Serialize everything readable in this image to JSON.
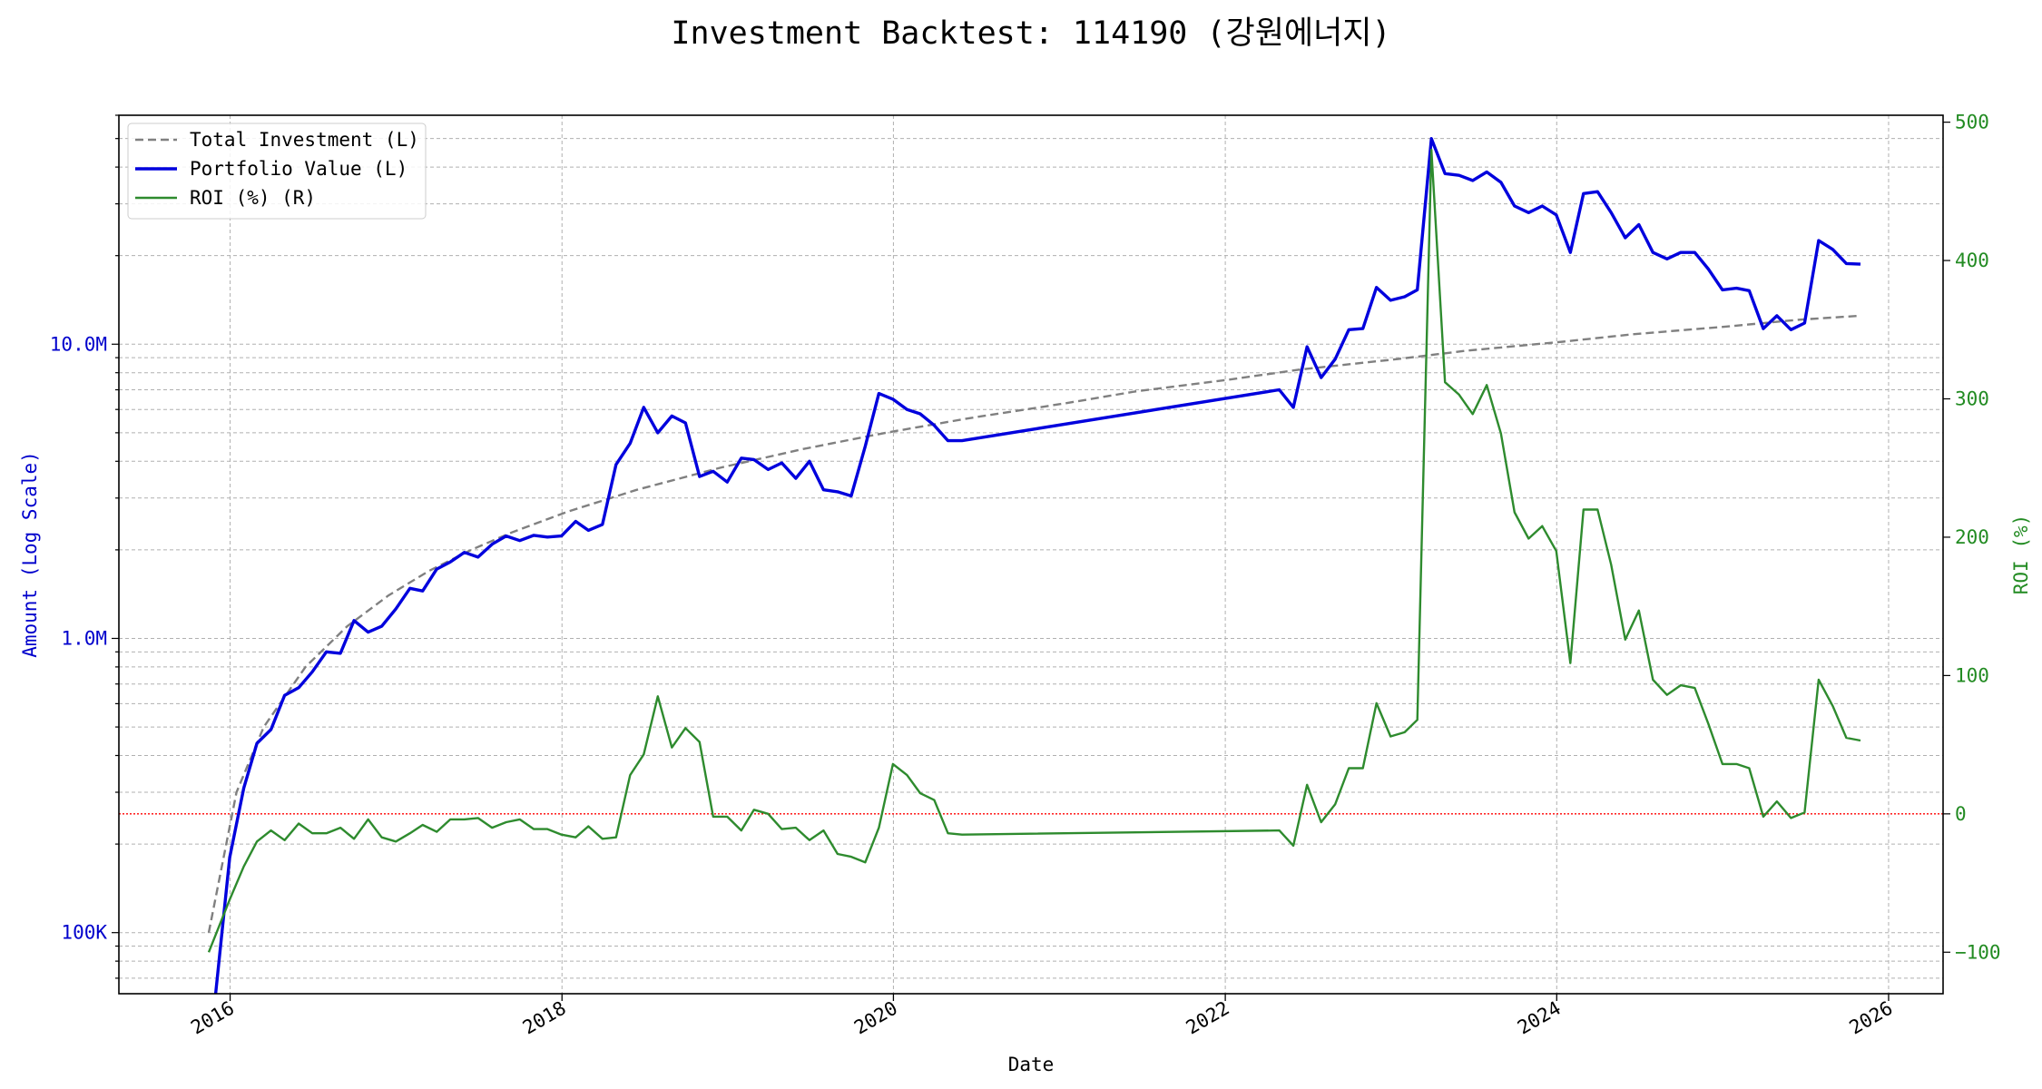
{
  "chart_data": {
    "type": "line",
    "title": "Investment Backtest: 114190 (강원에너지)",
    "xlabel": "Date",
    "ylabel_left": "Amount (Log Scale)",
    "ylabel_right": "ROI (%)",
    "y_left_scale": "log",
    "y_left_ticks": [
      {
        "value": 100000,
        "label": "100K"
      },
      {
        "value": 1000000,
        "label": "1.0M"
      },
      {
        "value": 10000000,
        "label": "10.0M"
      }
    ],
    "y_left_range": [
      62000,
      60000000
    ],
    "y_right_ticks": [
      {
        "value": -100,
        "label": "−100"
      },
      {
        "value": 0,
        "label": "0"
      },
      {
        "value": 100,
        "label": "100"
      },
      {
        "value": 200,
        "label": "200"
      },
      {
        "value": 300,
        "label": "300"
      },
      {
        "value": 400,
        "label": "400"
      },
      {
        "value": 500,
        "label": "500"
      }
    ],
    "y_right_range": [
      -130,
      505
    ],
    "x_ticks": [
      {
        "value": "2016-01-01",
        "label": "2016"
      },
      {
        "value": "2018-01-01",
        "label": "2018"
      },
      {
        "value": "2020-01-01",
        "label": "2020"
      },
      {
        "value": "2022-01-01",
        "label": "2022"
      },
      {
        "value": "2024-01-01",
        "label": "2024"
      },
      {
        "value": "2026-01-01",
        "label": "2026"
      }
    ],
    "x_range": [
      "2015-05-01",
      "2026-05-01"
    ],
    "grid": true,
    "legend_position": "top-left",
    "reference_line": {
      "axis": "right",
      "value": 0,
      "color": "#ff0000",
      "style": "dotted"
    },
    "series": [
      {
        "name": "Total Investment (L)",
        "axis": "left",
        "color": "#808080",
        "style": "dashed",
        "x": [
          "2015-11-15",
          "2016-01-15",
          "2016-03-15",
          "2016-06-15",
          "2016-09-15",
          "2016-12-15",
          "2017-03-15",
          "2017-06-15",
          "2017-09-15",
          "2018-01-15",
          "2018-06-15",
          "2018-12-15",
          "2019-06-15",
          "2019-12-15",
          "2020-06-15",
          "2021-01-15",
          "2021-06-15",
          "2022-01-15",
          "2022-06-15",
          "2023-01-15",
          "2023-06-15",
          "2024-01-15",
          "2024-06-15",
          "2025-01-15",
          "2025-06-15",
          "2025-10-31"
        ],
        "values": [
          100000,
          300000,
          500000,
          800000,
          1100000,
          1400000,
          1700000,
          2000000,
          2300000,
          2700000,
          3200000,
          3800000,
          4400000,
          5000000,
          5600000,
          6300000,
          6900000,
          7600000,
          8200000,
          8900000,
          9500000,
          10200000,
          10800000,
          11500000,
          12100000,
          12500000
        ]
      },
      {
        "name": "Portfolio Value (L)",
        "axis": "left",
        "color": "#0000dd",
        "style": "solid",
        "x": [
          "2015-11-30",
          "2015-12-31",
          "2016-01-31",
          "2016-02-29",
          "2016-03-31",
          "2016-04-30",
          "2016-05-31",
          "2016-06-30",
          "2016-07-31",
          "2016-08-31",
          "2016-09-30",
          "2016-10-31",
          "2016-11-30",
          "2016-12-31",
          "2017-01-31",
          "2017-02-28",
          "2017-03-31",
          "2017-04-30",
          "2017-05-31",
          "2017-06-30",
          "2017-07-31",
          "2017-08-31",
          "2017-09-30",
          "2017-10-31",
          "2017-11-30",
          "2017-12-31",
          "2018-01-31",
          "2018-02-28",
          "2018-03-31",
          "2018-04-30",
          "2018-05-31",
          "2018-06-30",
          "2018-07-31",
          "2018-08-31",
          "2018-09-30",
          "2018-10-31",
          "2018-11-30",
          "2018-12-31",
          "2019-01-31",
          "2019-02-28",
          "2019-03-31",
          "2019-04-30",
          "2019-05-31",
          "2019-06-30",
          "2019-07-31",
          "2019-08-31",
          "2019-09-30",
          "2019-10-31",
          "2019-11-30",
          "2019-12-31",
          "2020-01-31",
          "2020-02-29",
          "2020-03-31",
          "2020-04-30",
          "2020-05-31",
          "2022-04-30",
          "2022-05-31",
          "2022-06-30",
          "2022-07-31",
          "2022-08-31",
          "2022-09-30",
          "2022-10-31",
          "2022-11-30",
          "2022-12-31",
          "2023-01-31",
          "2023-02-28",
          "2023-03-31",
          "2023-04-30",
          "2023-05-31",
          "2023-06-30",
          "2023-07-31",
          "2023-08-31",
          "2023-09-30",
          "2023-10-31",
          "2023-11-30",
          "2023-12-31",
          "2024-01-31",
          "2024-02-29",
          "2024-03-31",
          "2024-04-30",
          "2024-05-31",
          "2024-06-30",
          "2024-07-31",
          "2024-08-31",
          "2024-09-30",
          "2024-10-31",
          "2024-11-30",
          "2024-12-31",
          "2025-01-31",
          "2025-02-28",
          "2025-03-31",
          "2025-04-30",
          "2025-05-31",
          "2025-06-30",
          "2025-07-31",
          "2025-08-31",
          "2025-09-30",
          "2025-10-31"
        ],
        "values": [
          60000,
          180000,
          310000,
          440000,
          490000,
          640000,
          680000,
          770000,
          900000,
          890000,
          1150000,
          1050000,
          1100000,
          1260000,
          1480000,
          1450000,
          1720000,
          1820000,
          1960000,
          1890000,
          2090000,
          2230000,
          2150000,
          2240000,
          2210000,
          2230000,
          2500000,
          2330000,
          2440000,
          3900000,
          4600000,
          6100000,
          5000000,
          5700000,
          5400000,
          3550000,
          3700000,
          3400000,
          4100000,
          4050000,
          3750000,
          3950000,
          3500000,
          4000000,
          3200000,
          3150000,
          3050000,
          4500000,
          6800000,
          6500000,
          6000000,
          5800000,
          5300000,
          4700000,
          4700000,
          7000000,
          6100000,
          9800000,
          7700000,
          8900000,
          11200000,
          11300000,
          15600000,
          14100000,
          14500000,
          15300000,
          50000000,
          38000000,
          37500000,
          36000000,
          38500000,
          35500000,
          29500000,
          28000000,
          29500000,
          27500000,
          20500000,
          32500000,
          33000000,
          28000000,
          23000000,
          25500000,
          20500000,
          19500000,
          20500000,
          20500000,
          18000000,
          15300000,
          15500000,
          15200000,
          11300000,
          12500000,
          11200000,
          11800000,
          22500000,
          21000000,
          18800000,
          18700000
        ]
      },
      {
        "name": "ROI (%) (R)",
        "axis": "right",
        "color": "#2e8b2e",
        "style": "solid",
        "x": [
          "2015-11-15",
          "2015-12-31",
          "2016-01-31",
          "2016-02-29",
          "2016-03-31",
          "2016-04-30",
          "2016-05-31",
          "2016-06-30",
          "2016-07-31",
          "2016-08-31",
          "2016-09-30",
          "2016-10-31",
          "2016-11-30",
          "2016-12-31",
          "2017-01-31",
          "2017-02-28",
          "2017-03-31",
          "2017-04-30",
          "2017-05-31",
          "2017-06-30",
          "2017-07-31",
          "2017-08-31",
          "2017-09-30",
          "2017-10-31",
          "2017-11-30",
          "2017-12-31",
          "2018-01-31",
          "2018-02-28",
          "2018-03-31",
          "2018-04-30",
          "2018-05-31",
          "2018-06-30",
          "2018-07-31",
          "2018-08-31",
          "2018-09-30",
          "2018-10-31",
          "2018-11-30",
          "2018-12-31",
          "2019-01-31",
          "2019-02-28",
          "2019-03-31",
          "2019-04-30",
          "2019-05-31",
          "2019-06-30",
          "2019-07-31",
          "2019-08-31",
          "2019-09-30",
          "2019-10-31",
          "2019-11-30",
          "2019-12-31",
          "2020-01-31",
          "2020-02-29",
          "2020-03-31",
          "2020-04-30",
          "2020-05-31",
          "2022-04-30",
          "2022-05-31",
          "2022-06-30",
          "2022-07-31",
          "2022-08-31",
          "2022-09-30",
          "2022-10-31",
          "2022-11-30",
          "2022-12-31",
          "2023-01-31",
          "2023-02-28",
          "2023-03-31",
          "2023-04-30",
          "2023-05-31",
          "2023-06-30",
          "2023-07-31",
          "2023-08-31",
          "2023-09-30",
          "2023-10-31",
          "2023-11-30",
          "2023-12-31",
          "2024-01-31",
          "2024-02-29",
          "2024-03-31",
          "2024-04-30",
          "2024-05-31",
          "2024-06-30",
          "2024-07-31",
          "2024-08-31",
          "2024-09-30",
          "2024-10-31",
          "2024-11-30",
          "2024-12-31",
          "2025-01-31",
          "2025-02-28",
          "2025-03-31",
          "2025-04-30",
          "2025-05-31",
          "2025-06-30",
          "2025-07-31",
          "2025-08-31",
          "2025-09-30",
          "2025-10-31"
        ],
        "values": [
          -100,
          -62,
          -38,
          -20,
          -12,
          -19,
          -7,
          -14,
          -14,
          -10,
          -18,
          -4,
          -17,
          -20,
          -14,
          -8,
          -13,
          -4,
          -4,
          -3,
          -10,
          -6,
          -4,
          -11,
          -11,
          -15,
          -17,
          -9,
          -18,
          -17,
          28,
          43,
          85,
          48,
          62,
          52,
          -2,
          -2,
          -12,
          3,
          0,
          -11,
          -10,
          -19,
          -12,
          -29,
          -31,
          -35,
          -10,
          36,
          28,
          15,
          10,
          -14,
          -15,
          -12,
          -23,
          21,
          -6,
          7,
          33,
          33,
          80,
          56,
          59,
          68,
          480,
          312,
          303,
          289,
          310,
          275,
          218,
          199,
          208,
          190,
          109,
          220,
          220,
          180,
          126,
          147,
          97,
          86,
          93,
          91,
          65,
          36,
          36,
          33,
          -2,
          9,
          -3,
          1,
          97,
          78,
          55,
          53
        ]
      }
    ]
  }
}
